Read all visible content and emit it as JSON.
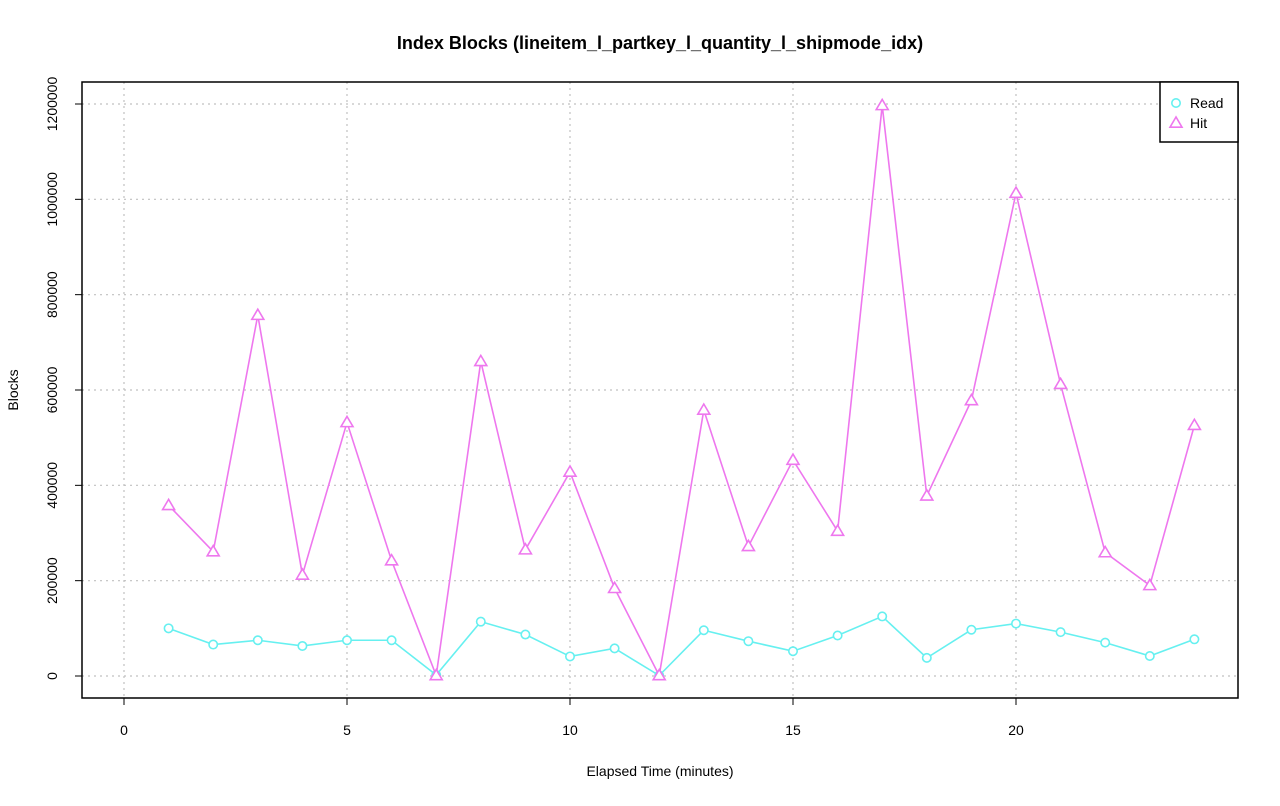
{
  "chart_data": {
    "type": "line",
    "title": "Index Blocks (lineitem_l_partkey_l_quantity_l_shipmode_idx)",
    "xlabel": "Elapsed Time (minutes)",
    "ylabel": "Blocks",
    "xlim": [
      0,
      25
    ],
    "ylim": [
      0,
      1200000
    ],
    "x_ticks": [
      0,
      5,
      10,
      15,
      20
    ],
    "y_ticks": [
      0,
      200000,
      400000,
      600000,
      800000,
      1000000,
      1200000
    ],
    "grid": true,
    "legend_position": "top-right",
    "x": [
      1,
      2,
      3,
      4,
      5,
      6,
      7,
      8,
      9,
      10,
      11,
      12,
      13,
      14,
      15,
      16,
      17,
      18,
      19,
      20,
      21,
      22,
      23,
      24
    ],
    "series": [
      {
        "name": "Read",
        "color": "#66f0f0",
        "marker": "circle",
        "values": [
          100000,
          66000,
          75000,
          63000,
          75000,
          75000,
          2000,
          114000,
          87000,
          41000,
          58000,
          1000,
          96000,
          73000,
          52000,
          85000,
          125000,
          38000,
          97000,
          110000,
          92000,
          70000,
          42000,
          77000
        ]
      },
      {
        "name": "Hit",
        "color": "#ee77ee",
        "marker": "triangle",
        "values": [
          358000,
          261000,
          757000,
          212000,
          532000,
          242000,
          1000,
          660000,
          265000,
          428000,
          184000,
          1000,
          558000,
          272000,
          453000,
          304000,
          1197000,
          378000,
          578000,
          1013000,
          612000,
          259000,
          190000,
          526000
        ]
      }
    ]
  }
}
